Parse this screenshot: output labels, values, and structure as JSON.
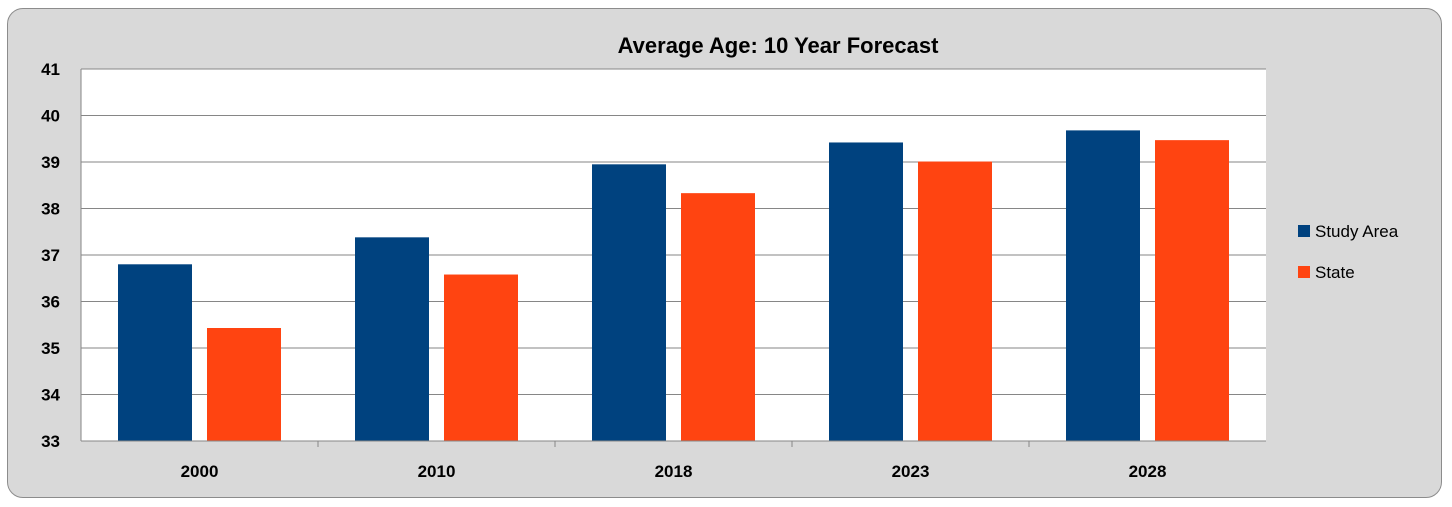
{
  "chart_data": {
    "type": "bar",
    "title": "Average Age: 10 Year Forecast",
    "categories": [
      "2000",
      "2010",
      "2018",
      "2023",
      "2028"
    ],
    "series": [
      {
        "name": "Study Area",
        "color": "#00427f",
        "values": [
          36.8,
          37.38,
          38.95,
          39.42,
          39.68
        ]
      },
      {
        "name": "State",
        "color": "#ff4411",
        "values": [
          35.43,
          36.58,
          38.33,
          39.01,
          39.47
        ]
      }
    ],
    "ylim": [
      33,
      41
    ],
    "yticks": [
      33,
      34,
      35,
      36,
      37,
      38,
      39,
      40,
      41
    ],
    "grid": true,
    "legend_position": "right"
  }
}
